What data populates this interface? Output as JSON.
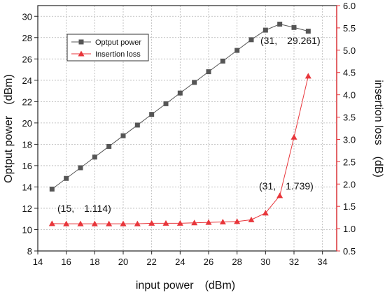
{
  "chart_data": {
    "type": "line",
    "xlabel": "input power　(dBm)",
    "ylabel_left": "Optput power　(dBm)",
    "ylabel_right": "insertion loss　(dB)",
    "xlim": [
      14,
      35
    ],
    "ylim_left": [
      8,
      31
    ],
    "ylim_right": [
      0.5,
      6.0
    ],
    "x_ticks": [
      14,
      16,
      18,
      20,
      22,
      24,
      26,
      28,
      30,
      32,
      34
    ],
    "y_left_ticks": [
      8,
      10,
      12,
      14,
      16,
      18,
      20,
      22,
      24,
      26,
      28,
      30
    ],
    "y_right_ticks": [
      0.5,
      1.0,
      1.5,
      2.0,
      2.5,
      3.0,
      3.5,
      4.0,
      4.5,
      5.0,
      5.5,
      6.0
    ],
    "y_right_tick_labels": [
      "0.5",
      "1.0",
      "1.5",
      "2.0",
      "2.5",
      "3.0",
      "3.5",
      "4.0",
      "4.5",
      "5.0",
      "5.5",
      "6.0"
    ],
    "grid": true,
    "legend_position": "top-left",
    "series": [
      {
        "name": "Optput power",
        "axis": "left",
        "marker": "square",
        "color": "#555555",
        "x": [
          15,
          16,
          17,
          18,
          19,
          20,
          21,
          22,
          23,
          24,
          25,
          26,
          27,
          28,
          29,
          30,
          31,
          32,
          33
        ],
        "y": [
          13.8,
          14.8,
          15.8,
          16.8,
          17.8,
          18.8,
          19.8,
          20.8,
          21.8,
          22.8,
          23.8,
          24.8,
          25.8,
          26.8,
          27.8,
          28.7,
          29.261,
          28.95,
          28.6
        ]
      },
      {
        "name": "Insertion loss",
        "axis": "right",
        "marker": "triangle",
        "color": "#e8363b",
        "x": [
          15,
          16,
          17,
          18,
          19,
          20,
          21,
          22,
          23,
          24,
          25,
          26,
          27,
          28,
          29,
          30,
          31,
          32,
          33
        ],
        "y": [
          1.114,
          1.11,
          1.11,
          1.11,
          1.11,
          1.11,
          1.11,
          1.12,
          1.12,
          1.12,
          1.13,
          1.14,
          1.15,
          1.16,
          1.2,
          1.35,
          1.739,
          3.05,
          4.42
        ]
      }
    ],
    "annotations": [
      {
        "text": "(31,　29.261)",
        "series": 0,
        "index": 16
      },
      {
        "text": "(31,　1.739)",
        "series": 1,
        "index": 16
      },
      {
        "text": "(15,　1.114)",
        "series": 1,
        "index": 0
      }
    ]
  }
}
